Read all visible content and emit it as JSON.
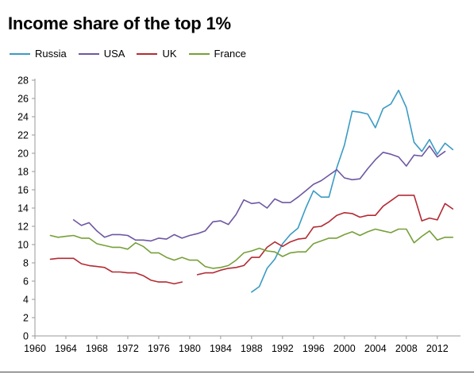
{
  "chart_data": {
    "type": "line",
    "title": "Income share of the top 1%",
    "xlabel": "",
    "ylabel": "",
    "xlim": [
      1960,
      2015
    ],
    "ylim": [
      0,
      28
    ],
    "x_ticks": [
      1960,
      1964,
      1968,
      1972,
      1976,
      1980,
      1984,
      1988,
      1992,
      1996,
      2000,
      2004,
      2008,
      2012
    ],
    "y_ticks": [
      0,
      2,
      4,
      6,
      8,
      10,
      12,
      14,
      16,
      18,
      20,
      22,
      24,
      26,
      28
    ],
    "grid": false,
    "legend_position": "top-left",
    "series": [
      {
        "name": "Russia",
        "color": "#3a9bc4",
        "points": [
          [
            1988,
            4.8
          ],
          [
            1989,
            5.4
          ],
          [
            1990,
            7.4
          ],
          [
            1991,
            8.4
          ],
          [
            1992,
            10.1
          ],
          [
            1993,
            11.1
          ],
          [
            1994,
            11.8
          ],
          [
            1995,
            14.0
          ],
          [
            1996,
            15.9
          ],
          [
            1997,
            15.2
          ],
          [
            1998,
            15.2
          ],
          [
            1999,
            18.4
          ],
          [
            2000,
            20.9
          ],
          [
            2001,
            24.6
          ],
          [
            2002,
            24.5
          ],
          [
            2003,
            24.3
          ],
          [
            2004,
            22.8
          ],
          [
            2005,
            24.9
          ],
          [
            2006,
            25.4
          ],
          [
            2007,
            26.9
          ],
          [
            2008,
            25.0
          ],
          [
            2009,
            21.2
          ],
          [
            2010,
            20.2
          ],
          [
            2011,
            21.5
          ],
          [
            2012,
            19.9
          ],
          [
            2013,
            21.1
          ],
          [
            2014,
            20.4
          ]
        ]
      },
      {
        "name": "USA",
        "color": "#6e57a2",
        "points": [
          [
            1965,
            12.7
          ],
          [
            1966,
            12.1
          ],
          [
            1967,
            12.4
          ],
          [
            1968,
            11.5
          ],
          [
            1969,
            10.8
          ],
          [
            1970,
            11.1
          ],
          [
            1971,
            11.1
          ],
          [
            1972,
            11.0
          ],
          [
            1973,
            10.5
          ],
          [
            1974,
            10.5
          ],
          [
            1975,
            10.4
          ],
          [
            1976,
            10.7
          ],
          [
            1977,
            10.6
          ],
          [
            1978,
            11.1
          ],
          [
            1979,
            10.7
          ],
          [
            1980,
            11.0
          ],
          [
            1981,
            11.2
          ],
          [
            1982,
            11.5
          ],
          [
            1983,
            12.5
          ],
          [
            1984,
            12.6
          ],
          [
            1985,
            12.2
          ],
          [
            1986,
            13.3
          ],
          [
            1987,
            14.9
          ],
          [
            1988,
            14.5
          ],
          [
            1989,
            14.6
          ],
          [
            1990,
            14.0
          ],
          [
            1991,
            15.0
          ],
          [
            1992,
            14.6
          ],
          [
            1993,
            14.6
          ],
          [
            1994,
            15.2
          ],
          [
            1995,
            15.9
          ],
          [
            1996,
            16.6
          ],
          [
            1997,
            17.0
          ],
          [
            1998,
            17.6
          ],
          [
            1999,
            18.2
          ],
          [
            2000,
            17.3
          ],
          [
            2001,
            17.1
          ],
          [
            2002,
            17.2
          ],
          [
            2003,
            18.3
          ],
          [
            2004,
            19.3
          ],
          [
            2005,
            20.1
          ],
          [
            2006,
            19.9
          ],
          [
            2007,
            19.6
          ],
          [
            2008,
            18.6
          ],
          [
            2009,
            19.8
          ],
          [
            2010,
            19.7
          ],
          [
            2011,
            20.8
          ],
          [
            2012,
            19.6
          ],
          [
            2013,
            20.2
          ]
        ]
      },
      {
        "name": "UK",
        "color": "#b22b34",
        "points": [
          [
            1962,
            8.4
          ],
          [
            1963,
            8.5
          ],
          [
            1964,
            8.5
          ],
          [
            1965,
            8.5
          ],
          [
            1966,
            7.9
          ],
          [
            1967,
            7.7
          ],
          [
            1968,
            7.6
          ],
          [
            1969,
            7.5
          ],
          [
            1970,
            7.0
          ],
          [
            1971,
            7.0
          ],
          [
            1972,
            6.9
          ],
          [
            1973,
            6.9
          ],
          [
            1974,
            6.6
          ],
          [
            1975,
            6.1
          ],
          [
            1976,
            5.9
          ],
          [
            1977,
            5.9
          ],
          [
            1978,
            5.7
          ],
          [
            1979,
            5.9
          ],
          [
            null,
            null
          ],
          [
            1981,
            6.7
          ],
          [
            1982,
            6.9
          ],
          [
            1983,
            6.9
          ],
          [
            1984,
            7.2
          ],
          [
            1985,
            7.4
          ],
          [
            1986,
            7.5
          ],
          [
            1987,
            7.7
          ],
          [
            1988,
            8.6
          ],
          [
            1989,
            8.6
          ],
          [
            1990,
            9.7
          ],
          [
            1991,
            10.3
          ],
          [
            1992,
            9.8
          ],
          [
            1993,
            10.3
          ],
          [
            1994,
            10.6
          ],
          [
            1995,
            10.7
          ],
          [
            1996,
            11.9
          ],
          [
            1997,
            12.0
          ],
          [
            1998,
            12.5
          ],
          [
            1999,
            13.2
          ],
          [
            2000,
            13.5
          ],
          [
            2001,
            13.4
          ],
          [
            2002,
            13.0
          ],
          [
            2003,
            13.2
          ],
          [
            2004,
            13.2
          ],
          [
            2005,
            14.2
          ],
          [
            2006,
            14.8
          ],
          [
            2007,
            15.4
          ],
          [
            2008,
            15.4
          ],
          [
            2009,
            15.4
          ],
          [
            2010,
            12.6
          ],
          [
            2011,
            12.9
          ],
          [
            2012,
            12.7
          ],
          [
            2013,
            14.5
          ],
          [
            2014,
            13.9
          ]
        ]
      },
      {
        "name": "France",
        "color": "#77a03a",
        "points": [
          [
            1962,
            11.0
          ],
          [
            1963,
            10.8
          ],
          [
            1964,
            10.9
          ],
          [
            1965,
            11.0
          ],
          [
            1966,
            10.7
          ],
          [
            1967,
            10.7
          ],
          [
            1968,
            10.1
          ],
          [
            1969,
            9.9
          ],
          [
            1970,
            9.7
          ],
          [
            1971,
            9.7
          ],
          [
            1972,
            9.5
          ],
          [
            1973,
            10.2
          ],
          [
            1974,
            9.8
          ],
          [
            1975,
            9.1
          ],
          [
            1976,
            9.1
          ],
          [
            1977,
            8.6
          ],
          [
            1978,
            8.3
          ],
          [
            1979,
            8.6
          ],
          [
            1980,
            8.3
          ],
          [
            1981,
            8.3
          ],
          [
            1982,
            7.6
          ],
          [
            1983,
            7.4
          ],
          [
            1984,
            7.5
          ],
          [
            1985,
            7.7
          ],
          [
            1986,
            8.3
          ],
          [
            1987,
            9.1
          ],
          [
            1988,
            9.3
          ],
          [
            1989,
            9.6
          ],
          [
            1990,
            9.3
          ],
          [
            1991,
            9.2
          ],
          [
            1992,
            8.7
          ],
          [
            1993,
            9.1
          ],
          [
            1994,
            9.2
          ],
          [
            1995,
            9.2
          ],
          [
            1996,
            10.1
          ],
          [
            1997,
            10.4
          ],
          [
            1998,
            10.7
          ],
          [
            1999,
            10.7
          ],
          [
            2000,
            11.1
          ],
          [
            2001,
            11.4
          ],
          [
            2002,
            11.0
          ],
          [
            2003,
            11.4
          ],
          [
            2004,
            11.7
          ],
          [
            2005,
            11.5
          ],
          [
            2006,
            11.3
          ],
          [
            2007,
            11.7
          ],
          [
            2008,
            11.7
          ],
          [
            2009,
            10.2
          ],
          [
            2010,
            10.9
          ],
          [
            2011,
            11.5
          ],
          [
            2012,
            10.5
          ],
          [
            2013,
            10.8
          ],
          [
            2014,
            10.8
          ]
        ]
      }
    ]
  }
}
